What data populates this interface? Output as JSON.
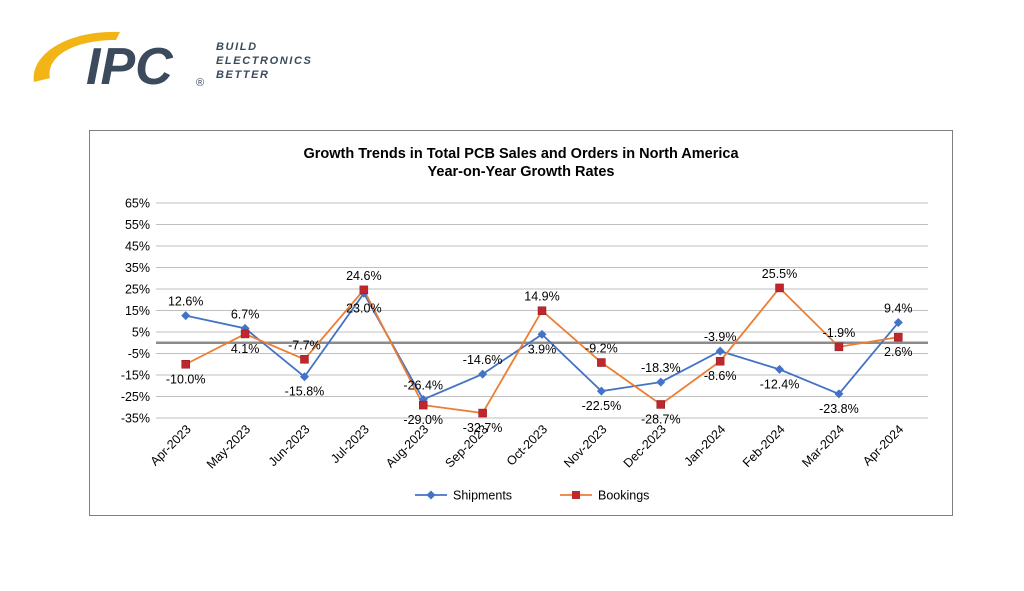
{
  "logo": {
    "mark": "IPC",
    "registered": "®",
    "tagline": [
      "BUILD",
      "ELECTRONICS",
      "BETTER"
    ]
  },
  "chart_data": {
    "type": "line",
    "title": "Growth Trends in Total PCB Sales and Orders in North America",
    "subtitle": "Year-on-Year Growth Rates",
    "categories": [
      "Apr-2023",
      "May-2023",
      "Jun-2023",
      "Jul-2023",
      "Aug-2023",
      "Sep-2023",
      "Oct-2023",
      "Nov-2023",
      "Dec-2023",
      "Jan-2024",
      "Feb-2024",
      "Mar-2024",
      "Apr-2024"
    ],
    "yticks": [
      "65%",
      "55%",
      "45%",
      "35%",
      "25%",
      "15%",
      "5%",
      "-5%",
      "-15%",
      "-25%",
      "-35%"
    ],
    "ylim": [
      -35,
      65
    ],
    "zero_line": 0,
    "grid": true,
    "legend_position": "bottom",
    "series": [
      {
        "name": "Shipments",
        "color": "#4472c4",
        "marker": "diamond",
        "values": [
          12.6,
          6.7,
          -15.8,
          23.0,
          -26.4,
          -14.6,
          3.9,
          -22.5,
          -18.3,
          -3.9,
          -12.4,
          -23.8,
          9.4
        ],
        "labels": [
          "12.6%",
          "6.7%",
          "-15.8%",
          "23.0%",
          "-26.4%",
          "-14.6%",
          "3.9%",
          "-22.5%",
          "-18.3%",
          "-3.9%",
          "-12.4%",
          "-23.8%",
          "9.4%"
        ]
      },
      {
        "name": "Bookings",
        "color": "#ed7d31",
        "marker_color": "#c0272d",
        "marker": "square",
        "values": [
          -10.0,
          4.1,
          -7.7,
          24.6,
          -29.0,
          -32.7,
          14.9,
          -9.2,
          -28.7,
          -8.6,
          25.5,
          -1.9,
          2.6
        ],
        "labels": [
          "-10.0%",
          "4.1%",
          "-7.7%",
          "24.6%",
          "-29.0%",
          "-32.7%",
          "14.9%",
          "-9.2%",
          "-28.7%",
          "-8.6%",
          "25.5%",
          "-1.9%",
          "2.6%"
        ]
      }
    ]
  }
}
